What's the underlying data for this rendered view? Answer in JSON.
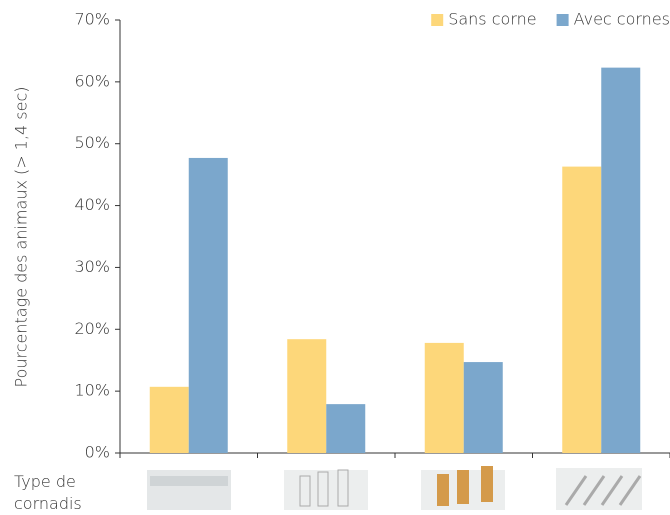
{
  "chart_data": {
    "type": "bar",
    "y_label": "Pourcentage des animaux (> 1,4 sec)",
    "x_label": "Type de cornadis",
    "categories": [
      null,
      null,
      null,
      null
    ],
    "series": [
      {
        "name": "Sans corne",
        "color": "#fdd77a",
        "values": [
          10.7,
          18.4,
          17.8,
          46.3
        ]
      },
      {
        "name": "Avec cornes",
        "color": "#7ba7cc",
        "values": [
          47.7,
          7.9,
          14.7,
          62.3
        ]
      }
    ],
    "ylim": [
      0,
      70
    ],
    "yticks": [
      {
        "value": 0,
        "label": "0%"
      },
      {
        "value": 10,
        "label": "10%"
      },
      {
        "value": 20,
        "label": "20%"
      },
      {
        "value": 30,
        "label": "30%"
      },
      {
        "value": 40,
        "label": "40%"
      },
      {
        "value": 50,
        "label": "50%"
      },
      {
        "value": 60,
        "label": "60%"
      },
      {
        "value": 70,
        "label": "70%"
      }
    ],
    "legend": "top-right",
    "grid": false
  }
}
